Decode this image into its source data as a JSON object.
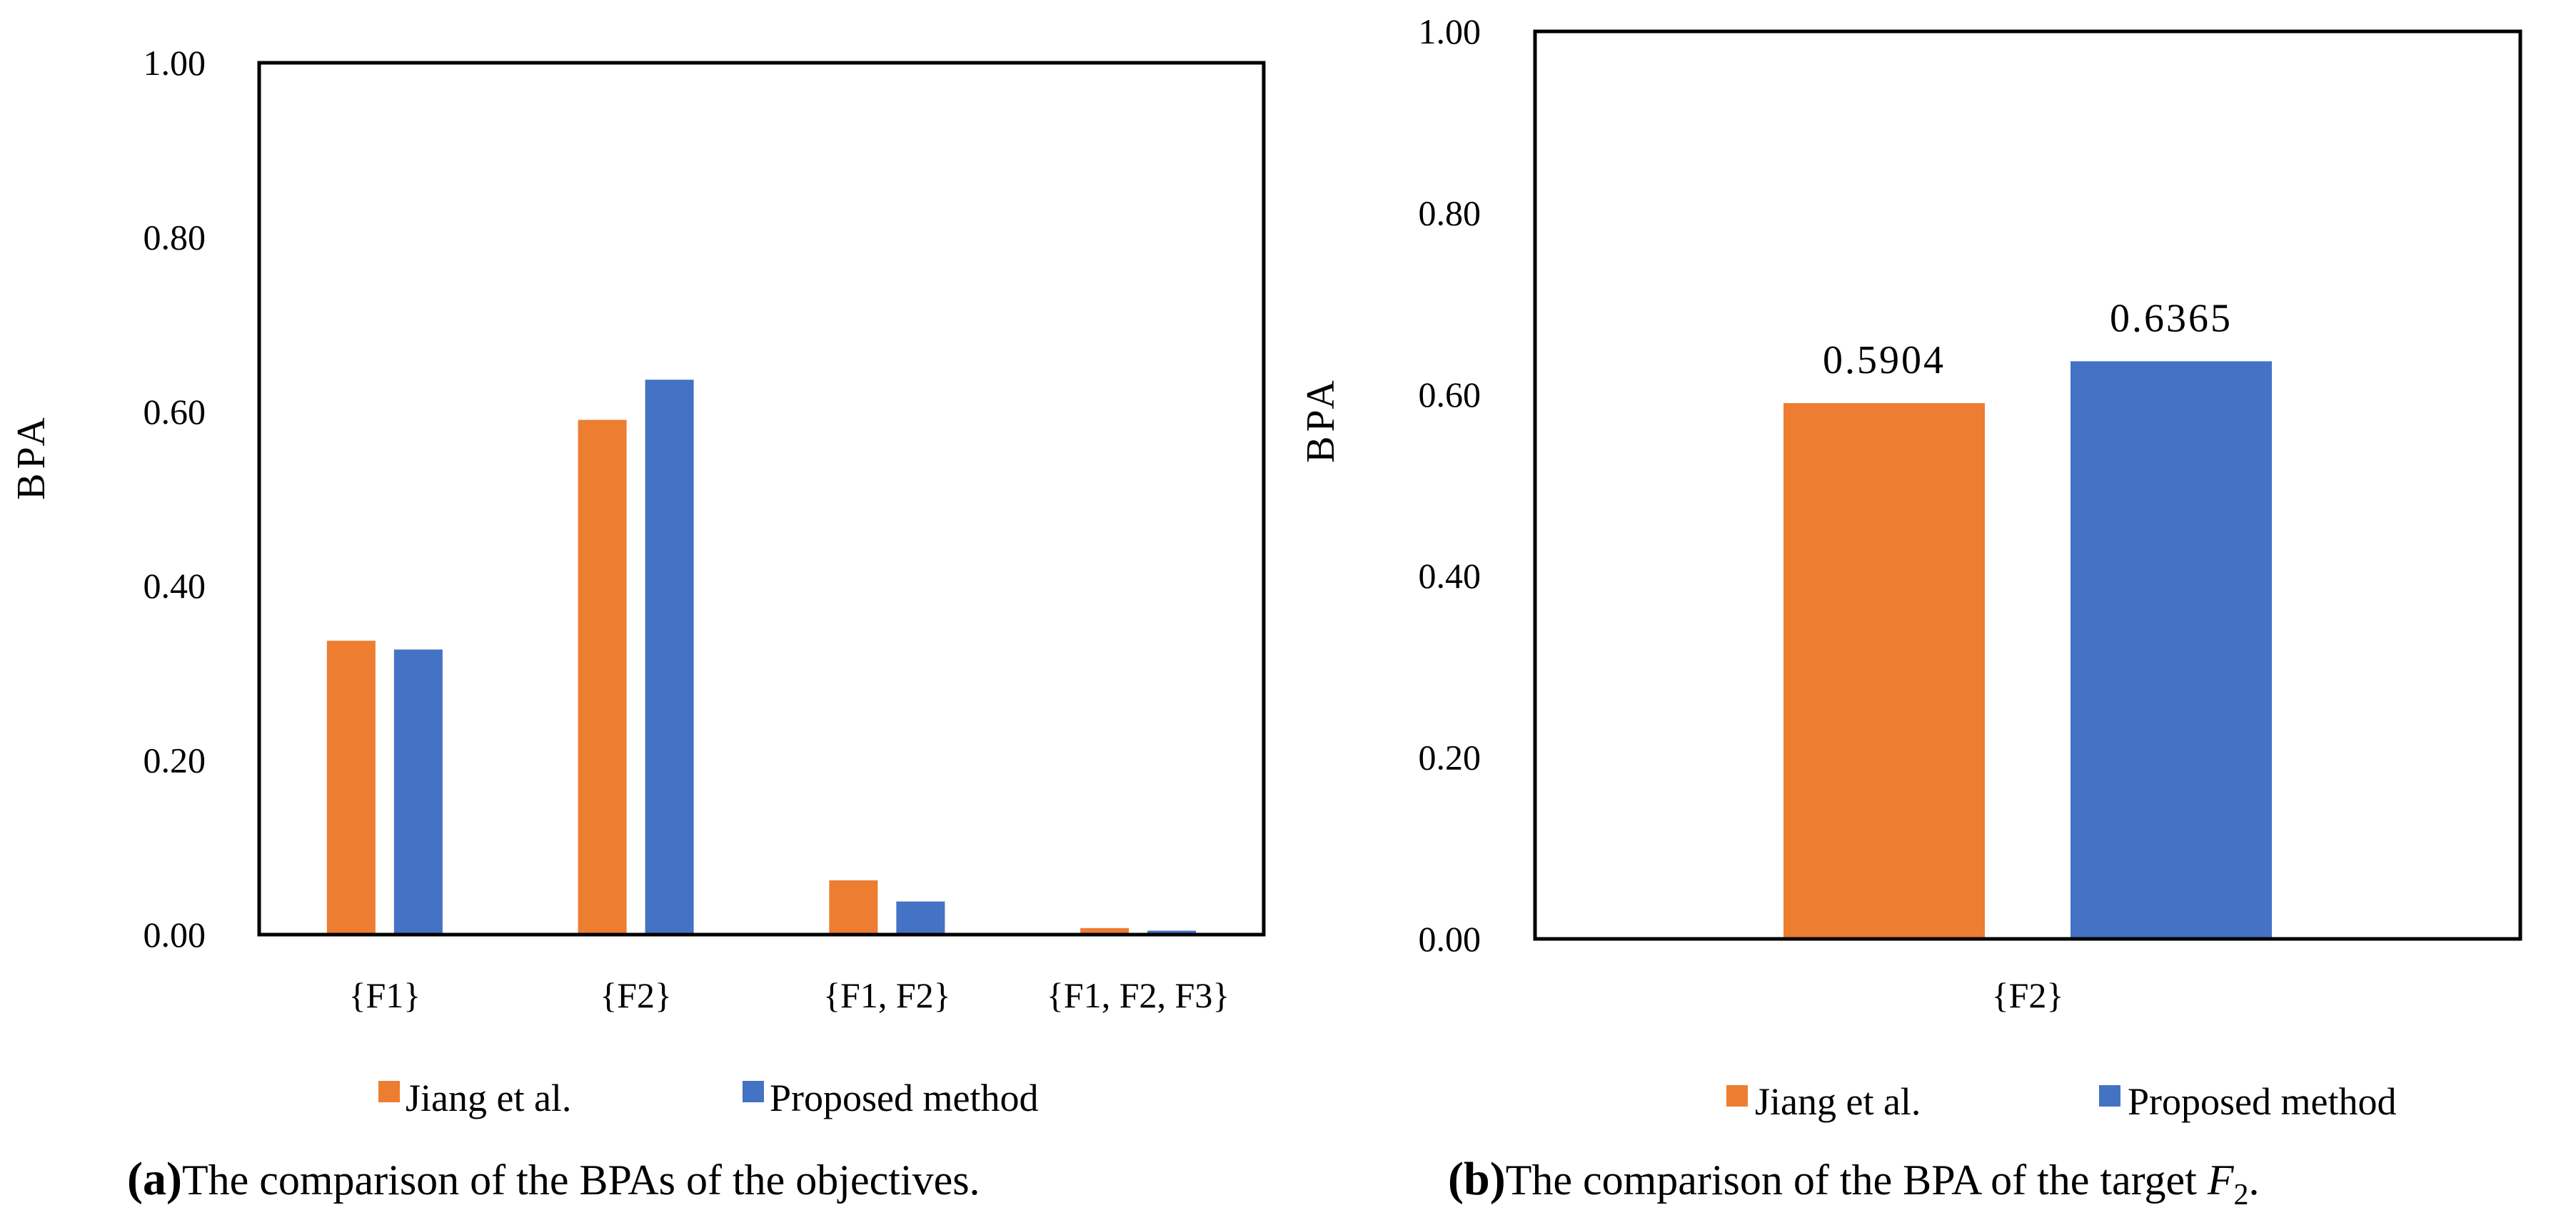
{
  "colors": {
    "jiang": "#ED7D31",
    "proposed": "#4472C4",
    "axis": "#000000"
  },
  "legend": [
    "Jiang et al.",
    "Proposed method"
  ],
  "chart_data": [
    {
      "type": "bar",
      "categories": [
        "{F1}",
        "{F2}",
        "{F1, F2}",
        "{F1, F2, F3}"
      ],
      "series": [
        {
          "name": "Jiang et al.",
          "values": [
            0.3371,
            0.5904,
            0.0623,
            0.0075
          ]
        },
        {
          "name": "Proposed method",
          "values": [
            0.327,
            0.6365,
            0.038,
            0.0045
          ]
        }
      ],
      "ylabel": "BPA",
      "ylim": [
        0,
        1
      ],
      "yticks": [
        "0.00",
        "0.20",
        "0.40",
        "0.60",
        "0.80",
        "1.00"
      ],
      "legend_position": "bottom",
      "grid": false,
      "caption": {
        "letter": "a",
        "text": "The comparison of the BPAs of the objectives."
      }
    },
    {
      "type": "bar",
      "categories": [
        "{F2}"
      ],
      "series": [
        {
          "name": "Jiang et al.",
          "values": [
            0.5904
          ]
        },
        {
          "name": "Proposed method",
          "values": [
            0.6365
          ]
        }
      ],
      "data_labels": [
        "0.5904",
        "0.6365"
      ],
      "ylabel": "BPA",
      "ylim": [
        0,
        1
      ],
      "yticks": [
        "0.00",
        "0.20",
        "0.40",
        "0.60",
        "0.80",
        "1.00"
      ],
      "legend_position": "bottom",
      "grid": false,
      "caption": {
        "letter": "b",
        "text": "The comparison of the BPA of the target ",
        "var": "F",
        "sub": "2",
        "end": "."
      }
    }
  ]
}
